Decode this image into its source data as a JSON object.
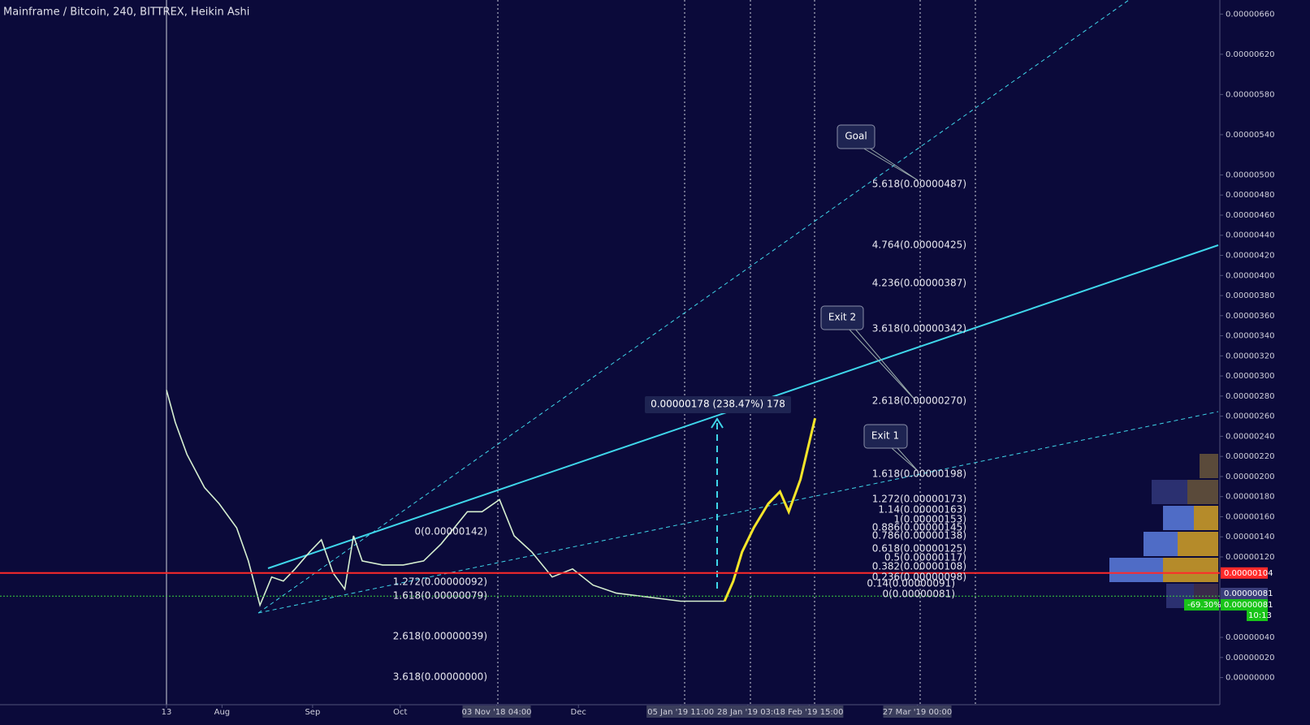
{
  "chart_data": {
    "type": "line",
    "title": "Mainframe / Bitcoin, 240, BITTREX, Heikin Ashi",
    "xlim": [
      -57,
      360
    ],
    "xticks": [
      {
        "value": 0,
        "label": "13"
      },
      {
        "value": 19,
        "label": "Aug"
      },
      {
        "value": 50,
        "label": "Sep"
      },
      {
        "value": 80,
        "label": "Oct"
      },
      {
        "value": 113,
        "label": "03 Nov '18  04:00"
      },
      {
        "value": 141,
        "label": "Dec"
      },
      {
        "value": 176,
        "label": "05 Jan '19  11:00"
      },
      {
        "value": 199,
        "label": "28 Jan '19  03:0"
      },
      {
        "value": 220,
        "label": "18 Feb '19  15:00"
      },
      {
        "value": 257,
        "label": "27 Mar '19  00:00"
      }
    ],
    "ylim": [
      -2.7e-07,
      6.74e-06
    ],
    "yticks": [
      {
        "value": 6.6e-06,
        "label": "0.00000660"
      },
      {
        "value": 6.2e-06,
        "label": "0.00000620"
      },
      {
        "value": 5.8e-06,
        "label": "0.00000580"
      },
      {
        "value": 5.4e-06,
        "label": "0.00000540"
      },
      {
        "value": 5e-06,
        "label": "0.00000500"
      },
      {
        "value": 4.8e-06,
        "label": "0.00000480"
      },
      {
        "value": 4.6e-06,
        "label": "0.00000460"
      },
      {
        "value": 4.4e-06,
        "label": "0.00000440"
      },
      {
        "value": 4.2e-06,
        "label": "0.00000420"
      },
      {
        "value": 4e-06,
        "label": "0.00000400"
      },
      {
        "value": 3.8e-06,
        "label": "0.00000380"
      },
      {
        "value": 3.6e-06,
        "label": "0.00000360"
      },
      {
        "value": 3.4e-06,
        "label": "0.00000340"
      },
      {
        "value": 3.2e-06,
        "label": "0.00000320"
      },
      {
        "value": 3e-06,
        "label": "0.00000300"
      },
      {
        "value": 2.8e-06,
        "label": "0.00000280"
      },
      {
        "value": 2.6e-06,
        "label": "0.00000260"
      },
      {
        "value": 2.4e-06,
        "label": "0.00000240"
      },
      {
        "value": 2.2e-06,
        "label": "0.00000220"
      },
      {
        "value": 2e-06,
        "label": "0.00000200"
      },
      {
        "value": 1.8e-06,
        "label": "0.00000180"
      },
      {
        "value": 1.6e-06,
        "label": "0.00000160"
      },
      {
        "value": 1.4e-06,
        "label": "0.00000140"
      },
      {
        "value": 1.2e-06,
        "label": "0.00000120"
      },
      {
        "value": 4e-07,
        "label": "0.00000040"
      },
      {
        "value": 2e-07,
        "label": "0.00000020"
      },
      {
        "value": 0,
        "label": "0.00000000"
      }
    ],
    "series": [
      {
        "color": "#d6efd0",
        "x": [
          0,
          3,
          7,
          13,
          18,
          24,
          28,
          32,
          36,
          40,
          44,
          49,
          53,
          57,
          61,
          64,
          67,
          74,
          81,
          88,
          94,
          103,
          108,
          114,
          119,
          125,
          132,
          139,
          146,
          154,
          165,
          176,
          185,
          191
        ],
        "values": [
          2.86e-06,
          2.54e-06,
          2.22e-06,
          1.89e-06,
          1.73e-06,
          1.49e-06,
          1.16e-06,
          7.2e-07,
          1e-06,
          9.6e-07,
          1.08e-06,
          1.25e-06,
          1.37e-06,
          1.04e-06,
          8.8e-07,
          1.41e-06,
          1.16e-06,
          1.12e-06,
          1.12e-06,
          1.16e-06,
          1.33e-06,
          1.65e-06,
          1.65e-06,
          1.77e-06,
          1.41e-06,
          1.25e-06,
          1e-06,
          1.08e-06,
          9.2e-07,
          8.4e-07,
          8e-07,
          7.6e-07,
          7.6e-07,
          7.6e-07
        ]
      },
      {
        "color": "#f5e52a",
        "x": [
          191,
          194,
          197,
          201,
          206,
          210,
          213,
          217,
          221,
          222
        ],
        "values": [
          7.6e-07,
          9.6e-07,
          1.25e-06,
          1.49e-06,
          1.73e-06,
          1.85e-06,
          1.65e-06,
          1.97e-06,
          2.46e-06,
          2.58e-06
        ]
      }
    ],
    "hlines": [
      {
        "value": 1.04e-06,
        "label": "0.00000104",
        "color": "#ff2a2a"
      },
      {
        "value": 8.1e-07,
        "label": "0.00000081",
        "color": "#3dd13d"
      }
    ],
    "fib_right": [
      "5.618(0.00000487)",
      "4.764(0.00000425)",
      "4.236(0.00000387)",
      "3.618(0.00000342)",
      "2.618(0.00000270)",
      "1.618(0.00000198)",
      "1.272(0.00000173)",
      "1.14(0.00000163)",
      "1(0.00000153)",
      "0.886(0.00000145)",
      "0.786(0.00000138)",
      "0.618(0.00000125)",
      "0.5(0.00000117)",
      "0.382(0.00000108)",
      "0.236(0.00000098)",
      "0.14(0.00000091)",
      "0(0.00000081)"
    ],
    "fib_left": [
      "0(0.00000142)",
      "1.272(0.00000092)",
      "1.618(0.00000079)",
      "2.618(0.00000039)",
      "3.618(0.00000000)"
    ],
    "callouts": [
      "Goal",
      "Exit 2",
      "Exit 1"
    ],
    "measure": "0.00000178 (238.47%) 178",
    "badges": [
      "0.00000081",
      "-69.30%",
      "0.00000081",
      "10:13"
    ]
  }
}
